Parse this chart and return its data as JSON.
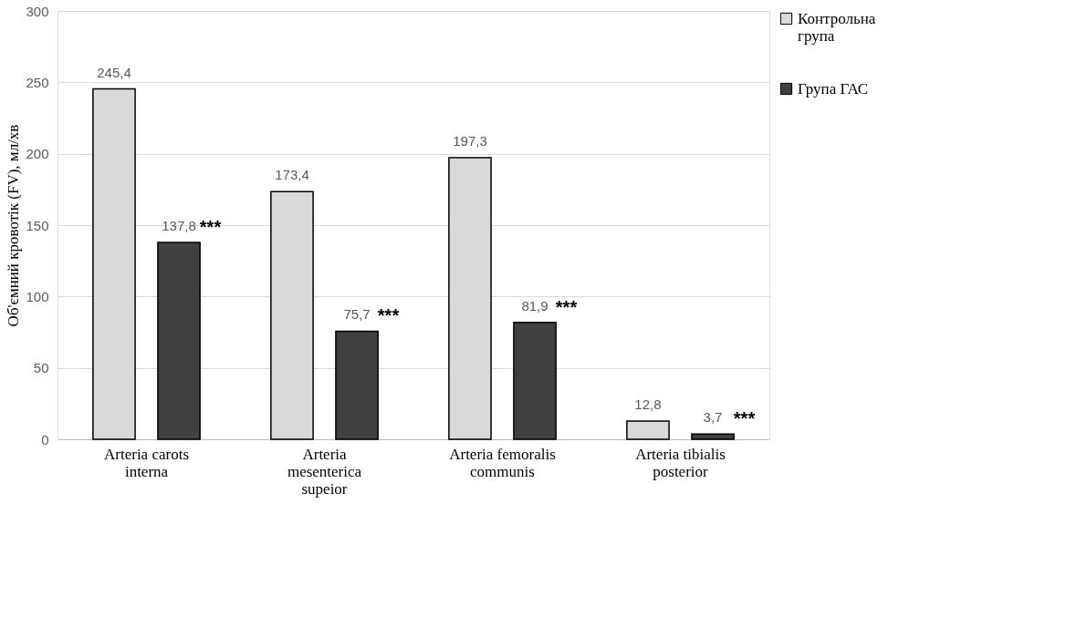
{
  "chart_data": {
    "type": "bar",
    "ylabel": "Об'ємний кровотік (FV), мл/хв",
    "categories": [
      "Arteria carots interna",
      "Arteria mesenterica supeior",
      "Arteria femoralis communis",
      "Arteria tibialis posterior"
    ],
    "series": [
      {
        "name": "Контрольна група",
        "color": "#d9d9d9",
        "values": [
          245.4,
          173.4,
          197.3,
          12.8
        ],
        "value_labels": [
          "245,4",
          "173,4",
          "197,3",
          "12,8"
        ]
      },
      {
        "name": "Група ГАС",
        "color": "#404040",
        "values": [
          137.8,
          75.7,
          81.9,
          3.7
        ],
        "value_labels": [
          "137,8",
          "75,7",
          "81,9",
          "3,7"
        ]
      }
    ],
    "annotations": [
      "***",
      "***",
      "***",
      "***"
    ],
    "ylim": [
      0,
      300
    ],
    "yticks": [
      0,
      50,
      100,
      150,
      200,
      250,
      300
    ],
    "grid": "y",
    "legend": "right"
  }
}
